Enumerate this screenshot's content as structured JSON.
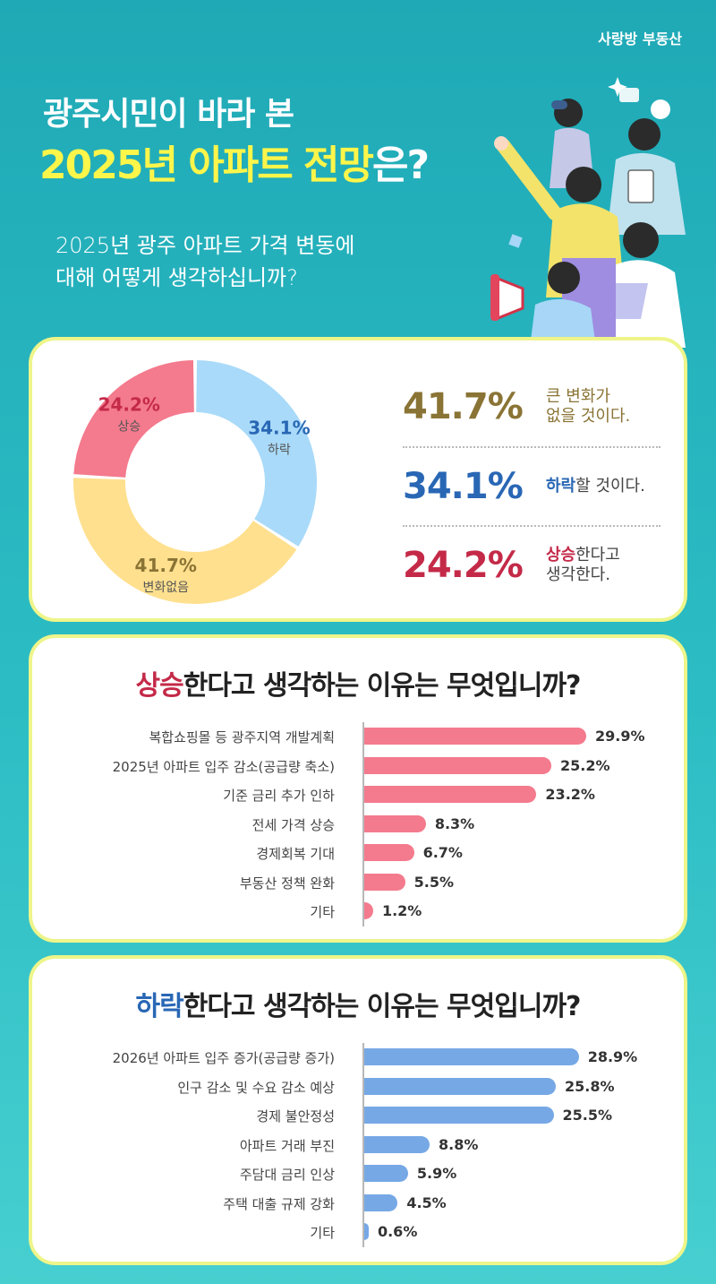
{
  "brand": "사랑방 부동산",
  "header": {
    "title_line1": "광주시민이 바라 본",
    "title_line2_highlight": "2025년 아파트 전망",
    "title_line2_rest": "은?",
    "question_line1": "2025년 광주 아파트 가격 변동에",
    "question_line2": "대해 어떻게 생각하십니까?"
  },
  "colors": {
    "rise": "#f47a8d",
    "fall": "#a9daf9",
    "nochange": "#ffe08f",
    "rise_text": "#c42a48",
    "fall_text": "#2967b5",
    "nochange_text": "#8a7435",
    "rise_bar": "#f47a8d",
    "fall_bar": "#76a8e6"
  },
  "chart_data": [
    {
      "type": "pie",
      "labels": [
        "상승",
        "하락",
        "변화없음"
      ],
      "values": [
        24.2,
        34.1,
        41.7
      ],
      "value_labels": [
        "24.2%",
        "34.1%",
        "41.7%"
      ],
      "legend": [
        {
          "pct": "41.7%",
          "bold": "",
          "text": "큰 변화가",
          "text2": "없을 것이다."
        },
        {
          "pct": "34.1%",
          "bold": "하락",
          "text": "할 것이다.",
          "text2": ""
        },
        {
          "pct": "24.2%",
          "bold": "상승",
          "text": "한다고",
          "text2": "생각한다."
        }
      ]
    },
    {
      "type": "bar",
      "title_highlight": "상승",
      "title_rest": "한다고 생각하는 이유는 무엇입니까?",
      "categories": [
        "복합쇼핑몰 등 광주지역 개발계획",
        "2025년 아파트 입주 감소(공급량 축소)",
        "기준 금리 추가 인하",
        "전세 가격 상승",
        "경제회복 기대",
        "부동산 정책 완화",
        "기타"
      ],
      "values": [
        29.9,
        25.2,
        23.2,
        8.3,
        6.7,
        5.5,
        1.2
      ],
      "value_labels": [
        "29.9%",
        "25.2%",
        "23.2%",
        "8.3%",
        "6.7%",
        "5.5%",
        "1.2%"
      ]
    },
    {
      "type": "bar",
      "title_highlight": "하락",
      "title_rest": "한다고 생각하는 이유는 무엇입니까?",
      "categories": [
        "2026년 아파트 입주 증가(공급량 증가)",
        "인구 감소 및 수요 감소 예상",
        "경제 불안정성",
        "아파트 거래 부진",
        "주담대 금리 인상",
        "주택 대출 규제 강화",
        "기타"
      ],
      "values": [
        28.9,
        25.8,
        25.5,
        8.8,
        5.9,
        4.5,
        0.6
      ],
      "value_labels": [
        "28.9%",
        "25.8%",
        "25.5%",
        "8.8%",
        "5.9%",
        "4.5%",
        "0.6%"
      ]
    }
  ]
}
